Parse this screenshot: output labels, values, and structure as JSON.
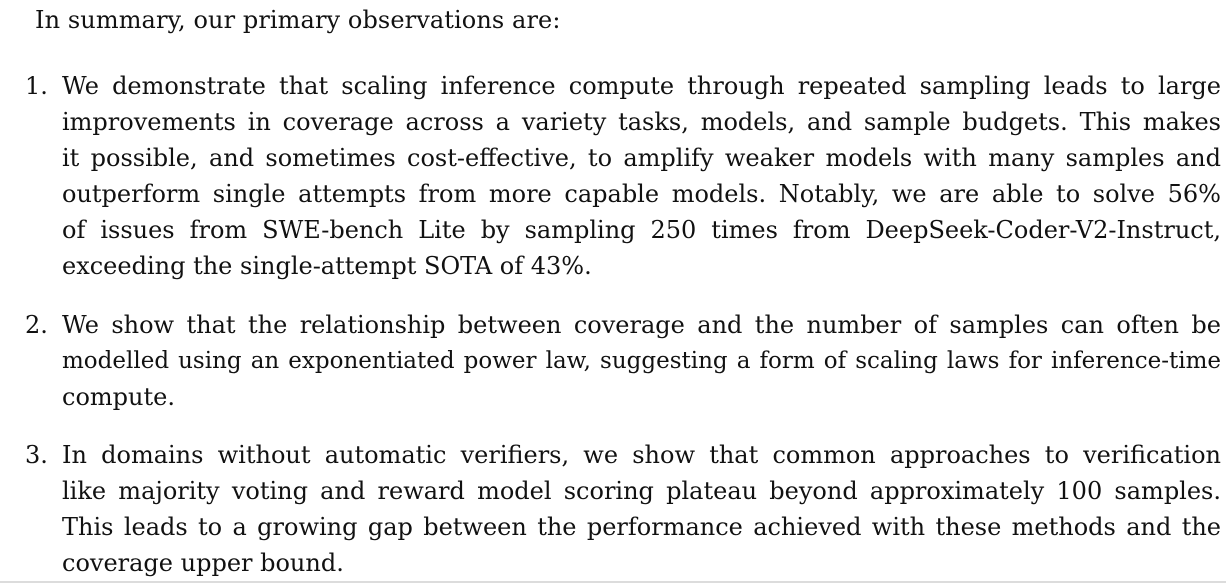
{
  "intro": "In summary, our primary observations are:",
  "items": [
    {
      "number": "1.",
      "lines": [
        "We demonstrate that scaling inference compute through repeated sampling leads to large",
        "improvements in coverage across a variety tasks, models, and sample budgets. This makes",
        "it possible, and sometimes cost-effective, to amplify weaker models with many samples and",
        "outperform single attempts from more capable models. Notably, we are able to solve 56%",
        "of issues from SWE-bench Lite by sampling 250 times from DeepSeek-Coder-V2-Instruct,",
        "exceeding the single-attempt SOTA of 43%."
      ]
    },
    {
      "number": "2.",
      "lines": [
        "We show that the relationship between coverage and the number of samples can often be",
        "modelled using an exponentiated power law, suggesting a form of scaling laws for inference-time",
        "compute."
      ]
    },
    {
      "number": "3.",
      "lines": [
        "In domains without automatic verifiers, we show that common approaches to verification",
        "like majority voting and reward model scoring plateau beyond approximately 100 samples.",
        "This leads to a growing gap between the performance achieved with these methods and the",
        "coverage upper bound."
      ]
    }
  ]
}
